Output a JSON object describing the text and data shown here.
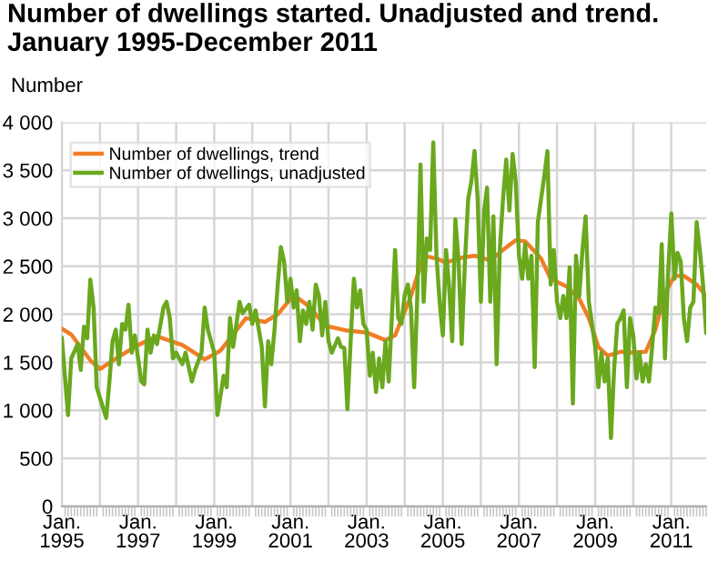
{
  "chart_data": {
    "type": "line",
    "title": "Number of dwellings started. Unadjusted and trend. January 1995-December 2011",
    "ylabel": "Number",
    "xlim": [
      "1995-01",
      "2011-12"
    ],
    "xticks": [
      {
        "value": "1995-01",
        "label": "Jan.\n1995"
      },
      {
        "value": "1996-01",
        "label": null
      },
      {
        "value": "1997-01",
        "label": "Jan.\n1997"
      },
      {
        "value": "1998-01",
        "label": null
      },
      {
        "value": "1999-01",
        "label": "Jan.\n1999"
      },
      {
        "value": "2000-01",
        "label": null
      },
      {
        "value": "2001-01",
        "label": "Jan.\n2001"
      },
      {
        "value": "2002-01",
        "label": null
      },
      {
        "value": "2003-01",
        "label": "Jan.\n2003"
      },
      {
        "value": "2004-01",
        "label": null
      },
      {
        "value": "2005-01",
        "label": "Jan.\n2005"
      },
      {
        "value": "2006-01",
        "label": null
      },
      {
        "value": "2007-01",
        "label": "Jan.\n2007"
      },
      {
        "value": "2008-01",
        "label": null
      },
      {
        "value": "2009-01",
        "label": "Jan.\n2009"
      },
      {
        "value": "2010-01",
        "label": null
      },
      {
        "value": "2011-01",
        "label": "Jan.\n2011"
      }
    ],
    "ylim": [
      0,
      4000
    ],
    "yticks": [
      0,
      500,
      {
        "value": 1000,
        "label": "1 000"
      },
      {
        "value": 1500,
        "label": "1 500"
      },
      {
        "value": 2000,
        "label": "2 000"
      },
      {
        "value": 2500,
        "label": "2 500"
      },
      {
        "value": 3000,
        "label": "3 000"
      },
      {
        "value": 3500,
        "label": "3 500"
      },
      {
        "value": 4000,
        "label": "4 000"
      }
    ],
    "grid": true,
    "legend": "top left",
    "marker": "none",
    "line_style": "solid",
    "series": [
      {
        "name": "Number of dwellings, trend",
        "color": "#f07e26",
        "x": [
          "1995-01",
          "1995-04",
          "1995-10",
          "1996-01",
          "1996-07",
          "1997-01",
          "1997-07",
          "1998-03",
          "1998-10",
          "1999-03",
          "1999-11",
          "2000-05",
          "2000-09",
          "2001-02",
          "2001-07",
          "2001-12",
          "2002-07",
          "2003-01",
          "2003-07",
          "2003-10",
          "2004-03",
          "2004-07",
          "2004-11",
          "2005-02",
          "2005-07",
          "2005-11",
          "2006-04",
          "2006-08",
          "2006-12",
          "2007-03",
          "2007-08",
          "2007-11",
          "2008-04",
          "2008-08",
          "2008-11",
          "2009-02",
          "2009-05",
          "2009-09",
          "2010-01",
          "2010-05",
          "2010-08",
          "2010-11",
          "2011-02",
          "2011-05",
          "2011-09",
          "2011-12"
        ],
        "values": [
          1850,
          1790,
          1520,
          1430,
          1560,
          1680,
          1770,
          1680,
          1530,
          1620,
          1960,
          1920,
          2000,
          2200,
          2080,
          1880,
          1830,
          1810,
          1730,
          1780,
          2190,
          2610,
          2580,
          2540,
          2590,
          2610,
          2560,
          2670,
          2770,
          2760,
          2580,
          2370,
          2290,
          2160,
          1960,
          1660,
          1570,
          1610,
          1600,
          1610,
          1840,
          2220,
          2400,
          2400,
          2310,
          2190
        ]
      },
      {
        "name": "Number of dwellings, unadjusted",
        "color": "#6aa81e",
        "x": [
          "1995-01",
          "1995-03",
          "1995-04",
          "1995-06",
          "1995-07",
          "1995-08",
          "1995-09",
          "1995-10",
          "1995-11",
          "1995-12",
          "1996-01",
          "1996-03",
          "1996-04",
          "1996-05",
          "1996-06",
          "1996-07",
          "1996-08",
          "1996-09",
          "1996-10",
          "1996-11",
          "1996-12",
          "1997-02",
          "1997-03",
          "1997-04",
          "1997-05",
          "1997-06",
          "1997-07",
          "1997-09",
          "1997-10",
          "1997-11",
          "1997-12",
          "1998-01",
          "1998-03",
          "1998-04",
          "1998-06",
          "1998-07",
          "1998-09",
          "1998-10",
          "1998-11",
          "1999-01",
          "1999-02",
          "1999-04",
          "1999-05",
          "1999-06",
          "1999-07",
          "1999-09",
          "1999-10",
          "1999-12",
          "2000-01",
          "2000-02",
          "2000-04",
          "2000-05",
          "2000-06",
          "2000-07",
          "2000-08",
          "2000-09",
          "2000-10",
          "2000-11",
          "2000-12",
          "2001-01",
          "2001-02",
          "2001-03",
          "2001-04",
          "2001-05",
          "2001-06",
          "2001-07",
          "2001-08",
          "2001-09",
          "2001-10",
          "2001-11",
          "2001-12",
          "2002-01",
          "2002-02",
          "2002-04",
          "2002-05",
          "2002-06",
          "2002-07",
          "2002-08",
          "2002-09",
          "2002-10",
          "2002-11",
          "2002-12",
          "2003-01",
          "2003-02",
          "2003-03",
          "2003-04",
          "2003-05",
          "2003-06",
          "2003-07",
          "2003-08",
          "2003-09",
          "2003-10",
          "2003-11",
          "2003-12",
          "2004-01",
          "2004-02",
          "2004-03",
          "2004-04",
          "2004-05",
          "2004-06",
          "2004-07",
          "2004-08",
          "2004-09",
          "2004-10",
          "2004-11",
          "2004-12",
          "2005-01",
          "2005-02",
          "2005-03",
          "2005-04",
          "2005-05",
          "2005-06",
          "2005-07",
          "2005-08",
          "2005-09",
          "2005-10",
          "2005-11",
          "2005-12",
          "2006-01",
          "2006-02",
          "2006-03",
          "2006-04",
          "2006-05",
          "2006-06",
          "2006-07",
          "2006-08",
          "2006-09",
          "2006-10",
          "2006-11",
          "2006-12",
          "2007-01",
          "2007-02",
          "2007-03",
          "2007-04",
          "2007-05",
          "2007-06",
          "2007-07",
          "2007-08",
          "2007-09",
          "2007-10",
          "2007-11",
          "2007-12",
          "2008-01",
          "2008-02",
          "2008-03",
          "2008-04",
          "2008-05",
          "2008-06",
          "2008-07",
          "2008-08",
          "2008-09",
          "2008-10",
          "2008-11",
          "2008-12",
          "2009-01",
          "2009-02",
          "2009-03",
          "2009-04",
          "2009-05",
          "2009-06",
          "2009-07",
          "2009-08",
          "2009-09",
          "2009-10",
          "2009-11",
          "2009-12",
          "2010-01",
          "2010-02",
          "2010-03",
          "2010-04",
          "2010-05",
          "2010-06",
          "2010-07",
          "2010-08",
          "2010-09",
          "2010-10",
          "2010-11",
          "2010-12",
          "2011-01",
          "2011-02",
          "2011-03",
          "2011-04",
          "2011-05",
          "2011-06",
          "2011-07",
          "2011-08",
          "2011-09",
          "2011-10",
          "2011-11",
          "2011-12"
        ],
        "values": [
          1750,
          950,
          1540,
          1690,
          1420,
          1870,
          1750,
          2360,
          2070,
          1240,
          1130,
          920,
          1300,
          1720,
          1840,
          1480,
          1900,
          1840,
          2100,
          1600,
          1780,
          1300,
          1270,
          1840,
          1600,
          1780,
          1690,
          2070,
          2130,
          1960,
          1540,
          1600,
          1480,
          1600,
          1300,
          1420,
          1600,
          2070,
          1840,
          1600,
          950,
          1360,
          1240,
          1960,
          1660,
          2130,
          2010,
          2100,
          1900,
          2040,
          1660,
          1040,
          1720,
          1480,
          1840,
          2310,
          2700,
          2550,
          2130,
          2370,
          2070,
          2250,
          1720,
          2040,
          1900,
          2130,
          1840,
          2310,
          2190,
          1780,
          2130,
          1720,
          1600,
          1750,
          1660,
          1650,
          1010,
          1720,
          2370,
          2070,
          2250,
          1900,
          1840,
          1360,
          1600,
          1190,
          1540,
          1240,
          1720,
          1300,
          1990,
          2670,
          1960,
          1900,
          2200,
          2310,
          2070,
          1240,
          2190,
          3560,
          2130,
          2790,
          2670,
          3790,
          2610,
          2130,
          1780,
          2670,
          2310,
          1720,
          2990,
          2550,
          1690,
          2550,
          3200,
          3380,
          3700,
          3200,
          2130,
          3080,
          3320,
          2130,
          3020,
          1480,
          2670,
          3200,
          3610,
          3080,
          3670,
          3380,
          2610,
          2370,
          2730,
          2370,
          2610,
          1450,
          2960,
          3200,
          3440,
          3700,
          2310,
          2670,
          2130,
          1960,
          2190,
          1960,
          2490,
          1070,
          2610,
          2190,
          2670,
          3020,
          2130,
          1900,
          1660,
          1240,
          1600,
          1300,
          1540,
          710,
          1420,
          1900,
          1960,
          2040,
          1240,
          1960,
          1780,
          1330,
          1600,
          1300,
          1480,
          1300,
          1660,
          2070,
          2010,
          2730,
          1540,
          2430,
          3050,
          2370,
          2640,
          2550,
          1960,
          1720,
          2070,
          2130,
          2960,
          2670,
          2310,
          1810
        ]
      }
    ]
  }
}
